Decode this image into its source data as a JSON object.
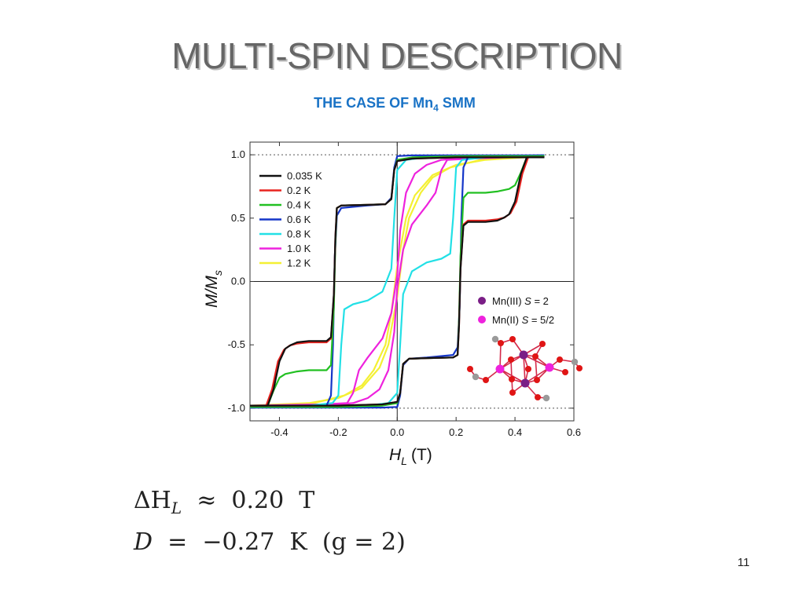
{
  "slide": {
    "title": "MULTI-SPIN DESCRIPTION",
    "subtitle_main": "THE CASE OF Mn",
    "subtitle_sub": "4",
    "subtitle_tail": " SMM",
    "page_number": "11"
  },
  "equations": {
    "line1": {
      "lhs": "ΔH",
      "sub": "L",
      "rel": "≈",
      "value": "0.20",
      "unit": "T"
    },
    "line2": {
      "lhs": "D",
      "rel": "=",
      "value": "−0.27",
      "unit": "K",
      "note": "(g = 2)"
    }
  },
  "colors": {
    "0.035 K": "#111111",
    "0.2 K": "#e8231f",
    "0.4 K": "#22c022",
    "0.6 K": "#1536c8",
    "0.8 K": "#22e0e6",
    "1.0 K": "#ee22dd",
    "1.2 K": "#f4f033",
    "mn3": "#7a1e86",
    "mn2": "#ee22dd",
    "oxygen": "#e01515",
    "carbon": "#9a9a9a"
  },
  "chart_data": {
    "type": "line",
    "xlabel_main": "H",
    "xlabel_sub": "L",
    "xlabel_unit": "(T)",
    "ylabel_main": "M/M",
    "ylabel_sub": "s",
    "xlim": [
      -0.5,
      0.6
    ],
    "ylim": [
      -1.1,
      1.1
    ],
    "xticks": [
      -0.4,
      -0.2,
      0.0,
      0.2,
      0.4,
      0.6
    ],
    "xtick_labels": [
      "-0.4",
      "-0.2",
      "0.0",
      "0.2",
      "0.4",
      "0.6"
    ],
    "yticks": [
      -1.0,
      -0.5,
      0.0,
      0.5,
      1.0
    ],
    "ytick_labels": [
      "-1.0",
      "-0.5",
      "0.0",
      "0.5",
      "1.0"
    ],
    "reference_lines": {
      "y": [
        1.0,
        -1.0
      ],
      "style": "dotted"
    },
    "zero_lines": true,
    "legend_placement": "upper-left",
    "series": [
      {
        "name": "0.035 K",
        "up": [
          [
            -0.5,
            -0.98
          ],
          [
            -0.44,
            -0.98
          ],
          [
            -0.42,
            -0.85
          ],
          [
            -0.4,
            -0.63
          ],
          [
            -0.38,
            -0.53
          ],
          [
            -0.36,
            -0.5
          ],
          [
            -0.34,
            -0.48
          ],
          [
            -0.3,
            -0.47
          ],
          [
            -0.24,
            -0.47
          ],
          [
            -0.225,
            -0.44
          ],
          [
            -0.215,
            -0.1
          ],
          [
            -0.21,
            0.35
          ],
          [
            -0.205,
            0.58
          ],
          [
            -0.19,
            0.6
          ],
          [
            -0.1,
            0.605
          ],
          [
            -0.04,
            0.61
          ],
          [
            -0.02,
            0.65
          ],
          [
            -0.01,
            0.88
          ],
          [
            0.0,
            0.95
          ],
          [
            0.05,
            0.97
          ],
          [
            0.2,
            0.98
          ],
          [
            0.5,
            0.98
          ]
        ],
        "down": [
          [
            0.5,
            0.98
          ],
          [
            0.44,
            0.98
          ],
          [
            0.42,
            0.85
          ],
          [
            0.4,
            0.63
          ],
          [
            0.38,
            0.53
          ],
          [
            0.36,
            0.5
          ],
          [
            0.34,
            0.48
          ],
          [
            0.3,
            0.47
          ],
          [
            0.24,
            0.47
          ],
          [
            0.225,
            0.44
          ],
          [
            0.215,
            0.1
          ],
          [
            0.21,
            -0.35
          ],
          [
            0.205,
            -0.58
          ],
          [
            0.19,
            -0.6
          ],
          [
            0.1,
            -0.605
          ],
          [
            0.04,
            -0.61
          ],
          [
            0.02,
            -0.65
          ],
          [
            0.01,
            -0.88
          ],
          [
            0.0,
            -0.95
          ],
          [
            -0.05,
            -0.97
          ],
          [
            -0.2,
            -0.98
          ],
          [
            -0.5,
            -0.98
          ]
        ]
      },
      {
        "name": "0.2 K",
        "up": [
          [
            -0.5,
            -0.98
          ],
          [
            -0.445,
            -0.98
          ],
          [
            -0.425,
            -0.85
          ],
          [
            -0.405,
            -0.63
          ],
          [
            -0.385,
            -0.54
          ],
          [
            -0.365,
            -0.505
          ],
          [
            -0.34,
            -0.49
          ],
          [
            -0.3,
            -0.48
          ],
          [
            -0.24,
            -0.48
          ],
          [
            -0.225,
            -0.45
          ],
          [
            -0.215,
            -0.1
          ],
          [
            -0.21,
            0.35
          ],
          [
            -0.205,
            0.58
          ],
          [
            -0.19,
            0.6
          ],
          [
            -0.1,
            0.605
          ],
          [
            -0.04,
            0.61
          ],
          [
            -0.02,
            0.65
          ],
          [
            -0.01,
            0.88
          ],
          [
            0.0,
            0.95
          ],
          [
            0.05,
            0.97
          ],
          [
            0.2,
            0.98
          ],
          [
            0.5,
            0.98
          ]
        ],
        "down": [
          [
            0.5,
            0.98
          ],
          [
            0.445,
            0.98
          ],
          [
            0.425,
            0.85
          ],
          [
            0.405,
            0.63
          ],
          [
            0.385,
            0.54
          ],
          [
            0.365,
            0.505
          ],
          [
            0.34,
            0.49
          ],
          [
            0.3,
            0.48
          ],
          [
            0.24,
            0.48
          ],
          [
            0.225,
            0.45
          ],
          [
            0.215,
            0.1
          ],
          [
            0.21,
            -0.35
          ],
          [
            0.205,
            -0.58
          ],
          [
            0.19,
            -0.6
          ],
          [
            0.1,
            -0.605
          ],
          [
            0.04,
            -0.61
          ],
          [
            0.02,
            -0.65
          ],
          [
            0.01,
            -0.88
          ],
          [
            0.0,
            -0.95
          ],
          [
            -0.05,
            -0.97
          ],
          [
            -0.2,
            -0.98
          ],
          [
            -0.5,
            -0.98
          ]
        ]
      },
      {
        "name": "0.4 K",
        "up": [
          [
            -0.5,
            -0.98
          ],
          [
            -0.44,
            -0.98
          ],
          [
            -0.42,
            -0.86
          ],
          [
            -0.4,
            -0.76
          ],
          [
            -0.38,
            -0.73
          ],
          [
            -0.34,
            -0.71
          ],
          [
            -0.3,
            -0.7
          ],
          [
            -0.24,
            -0.7
          ],
          [
            -0.225,
            -0.66
          ],
          [
            -0.215,
            -0.2
          ],
          [
            -0.21,
            0.3
          ],
          [
            -0.205,
            0.58
          ],
          [
            -0.19,
            0.6
          ],
          [
            -0.1,
            0.605
          ],
          [
            -0.04,
            0.61
          ],
          [
            -0.02,
            0.65
          ],
          [
            -0.01,
            0.88
          ],
          [
            0.0,
            0.96
          ],
          [
            0.05,
            0.98
          ],
          [
            0.2,
            0.99
          ],
          [
            0.5,
            0.99
          ]
        ],
        "down": [
          [
            0.5,
            0.99
          ],
          [
            0.44,
            0.98
          ],
          [
            0.42,
            0.86
          ],
          [
            0.4,
            0.76
          ],
          [
            0.38,
            0.73
          ],
          [
            0.34,
            0.71
          ],
          [
            0.3,
            0.7
          ],
          [
            0.24,
            0.7
          ],
          [
            0.225,
            0.66
          ],
          [
            0.215,
            0.2
          ],
          [
            0.21,
            -0.3
          ],
          [
            0.205,
            -0.58
          ],
          [
            0.19,
            -0.6
          ],
          [
            0.1,
            -0.605
          ],
          [
            0.04,
            -0.61
          ],
          [
            0.02,
            -0.65
          ],
          [
            0.01,
            -0.88
          ],
          [
            0.0,
            -0.96
          ],
          [
            -0.05,
            -0.98
          ],
          [
            -0.2,
            -0.99
          ],
          [
            -0.5,
            -0.99
          ]
        ]
      },
      {
        "name": "0.6 K",
        "up": [
          [
            -0.5,
            -0.99
          ],
          [
            -0.3,
            -0.99
          ],
          [
            -0.24,
            -0.98
          ],
          [
            -0.225,
            -0.9
          ],
          [
            -0.218,
            -0.5
          ],
          [
            -0.212,
            0.2
          ],
          [
            -0.205,
            0.52
          ],
          [
            -0.19,
            0.58
          ],
          [
            -0.1,
            0.6
          ],
          [
            -0.04,
            0.61
          ],
          [
            -0.02,
            0.66
          ],
          [
            -0.01,
            0.9
          ],
          [
            0.0,
            0.99
          ],
          [
            0.05,
            0.995
          ],
          [
            0.2,
            0.995
          ],
          [
            0.5,
            0.995
          ]
        ],
        "down": [
          [
            0.5,
            0.995
          ],
          [
            0.3,
            0.99
          ],
          [
            0.24,
            0.98
          ],
          [
            0.225,
            0.9
          ],
          [
            0.218,
            0.5
          ],
          [
            0.212,
            -0.2
          ],
          [
            0.205,
            -0.52
          ],
          [
            0.19,
            -0.58
          ],
          [
            0.1,
            -0.6
          ],
          [
            0.04,
            -0.61
          ],
          [
            0.02,
            -0.66
          ],
          [
            0.01,
            -0.9
          ],
          [
            0.0,
            -0.99
          ],
          [
            -0.05,
            -0.995
          ],
          [
            -0.2,
            -0.995
          ],
          [
            -0.5,
            -0.995
          ]
        ]
      },
      {
        "name": "0.8 K",
        "up": [
          [
            -0.5,
            -0.99
          ],
          [
            -0.3,
            -0.98
          ],
          [
            -0.22,
            -0.96
          ],
          [
            -0.2,
            -0.9
          ],
          [
            -0.19,
            -0.5
          ],
          [
            -0.18,
            -0.22
          ],
          [
            -0.15,
            -0.18
          ],
          [
            -0.1,
            -0.15
          ],
          [
            -0.05,
            -0.08
          ],
          [
            -0.02,
            0.1
          ],
          [
            -0.01,
            0.5
          ],
          [
            0.0,
            0.88
          ],
          [
            0.03,
            0.96
          ],
          [
            0.1,
            0.98
          ],
          [
            0.2,
            0.99
          ],
          [
            0.5,
            0.995
          ]
        ],
        "down": [
          [
            0.5,
            0.995
          ],
          [
            0.3,
            0.98
          ],
          [
            0.22,
            0.96
          ],
          [
            0.2,
            0.9
          ],
          [
            0.19,
            0.5
          ],
          [
            0.18,
            0.22
          ],
          [
            0.15,
            0.18
          ],
          [
            0.1,
            0.15
          ],
          [
            0.05,
            0.08
          ],
          [
            0.02,
            -0.1
          ],
          [
            0.01,
            -0.5
          ],
          [
            0.0,
            -0.88
          ],
          [
            -0.03,
            -0.96
          ],
          [
            -0.1,
            -0.98
          ],
          [
            -0.2,
            -0.99
          ],
          [
            -0.5,
            -0.995
          ]
        ]
      },
      {
        "name": "1.0 K",
        "up": [
          [
            -0.5,
            -0.98
          ],
          [
            -0.25,
            -0.97
          ],
          [
            -0.17,
            -0.96
          ],
          [
            -0.15,
            -0.88
          ],
          [
            -0.13,
            -0.7
          ],
          [
            -0.1,
            -0.6
          ],
          [
            -0.05,
            -0.45
          ],
          [
            -0.02,
            -0.25
          ],
          [
            0.0,
            0.05
          ],
          [
            0.01,
            0.4
          ],
          [
            0.03,
            0.7
          ],
          [
            0.06,
            0.85
          ],
          [
            0.1,
            0.92
          ],
          [
            0.15,
            0.96
          ],
          [
            0.25,
            0.98
          ],
          [
            0.5,
            0.99
          ]
        ],
        "down": [
          [
            0.5,
            0.99
          ],
          [
            0.25,
            0.97
          ],
          [
            0.17,
            0.96
          ],
          [
            0.15,
            0.88
          ],
          [
            0.13,
            0.7
          ],
          [
            0.1,
            0.6
          ],
          [
            0.05,
            0.45
          ],
          [
            0.02,
            0.25
          ],
          [
            0.0,
            -0.05
          ],
          [
            -0.01,
            -0.4
          ],
          [
            -0.03,
            -0.7
          ],
          [
            -0.06,
            -0.85
          ],
          [
            -0.1,
            -0.92
          ],
          [
            -0.15,
            -0.96
          ],
          [
            -0.25,
            -0.98
          ],
          [
            -0.5,
            -0.99
          ]
        ]
      },
      {
        "name": "1.2 K",
        "up": [
          [
            -0.5,
            -0.98
          ],
          [
            -0.3,
            -0.96
          ],
          [
            -0.2,
            -0.92
          ],
          [
            -0.12,
            -0.84
          ],
          [
            -0.06,
            -0.68
          ],
          [
            -0.03,
            -0.5
          ],
          [
            0.0,
            -0.12
          ],
          [
            0.02,
            0.25
          ],
          [
            0.04,
            0.5
          ],
          [
            0.08,
            0.7
          ],
          [
            0.12,
            0.82
          ],
          [
            0.18,
            0.9
          ],
          [
            0.3,
            0.97
          ],
          [
            0.5,
            0.99
          ]
        ],
        "down": [
          [
            0.5,
            0.99
          ],
          [
            0.3,
            0.96
          ],
          [
            0.2,
            0.92
          ],
          [
            0.12,
            0.84
          ],
          [
            0.06,
            0.68
          ],
          [
            0.03,
            0.5
          ],
          [
            0.0,
            0.12
          ],
          [
            -0.02,
            -0.25
          ],
          [
            -0.04,
            -0.5
          ],
          [
            -0.08,
            -0.7
          ],
          [
            -0.12,
            -0.82
          ],
          [
            -0.18,
            -0.9
          ],
          [
            -0.3,
            -0.97
          ],
          [
            -0.5,
            -0.99
          ]
        ]
      }
    ],
    "inset_legend": [
      {
        "key": "mn3",
        "label": "Mn(III) ",
        "sym": "S",
        "tail": " = 2"
      },
      {
        "key": "mn2",
        "label": "Mn(II) ",
        "sym": "S",
        "tail": " = 5/2"
      }
    ]
  }
}
